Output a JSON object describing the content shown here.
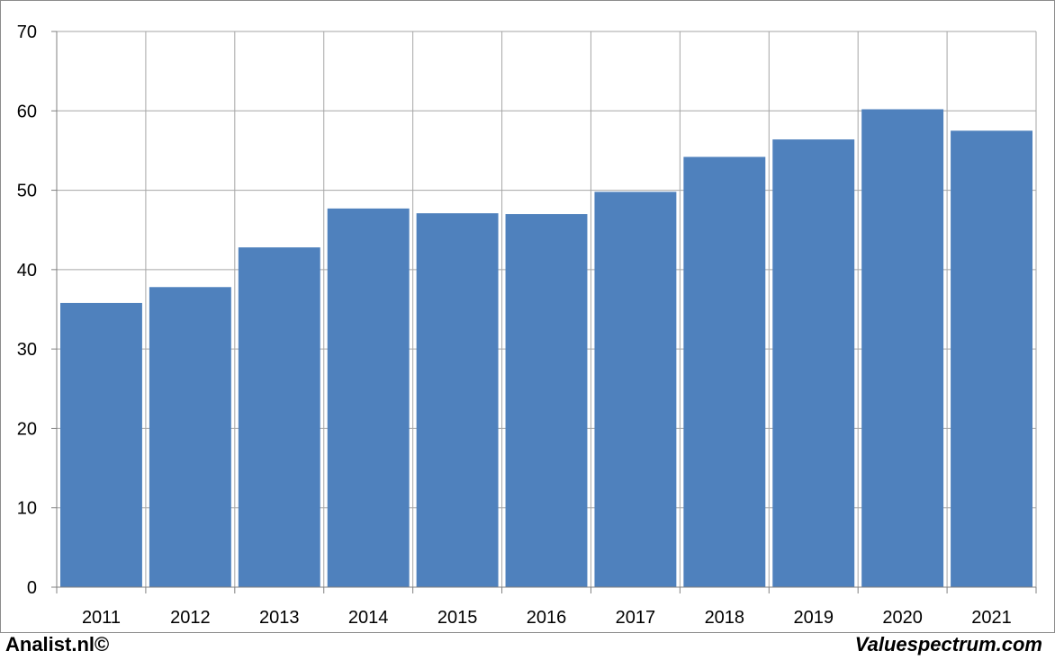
{
  "chart_data": {
    "type": "bar",
    "categories": [
      "2011",
      "2012",
      "2013",
      "2014",
      "2015",
      "2016",
      "2017",
      "2018",
      "2019",
      "2020",
      "2021"
    ],
    "values": [
      35.8,
      37.8,
      42.8,
      47.7,
      47.1,
      47.0,
      49.8,
      54.2,
      56.4,
      60.2,
      57.5
    ],
    "yticks": [
      0,
      10,
      20,
      30,
      40,
      50,
      60,
      70
    ],
    "ylim": [
      0,
      70
    ],
    "grid": true,
    "legend": "none",
    "bar_color": "#4f81bd",
    "title": "",
    "xlabel": "",
    "ylabel": ""
  },
  "footer": {
    "left": "Analist.nl©",
    "right": "Valuespectrum.com"
  }
}
